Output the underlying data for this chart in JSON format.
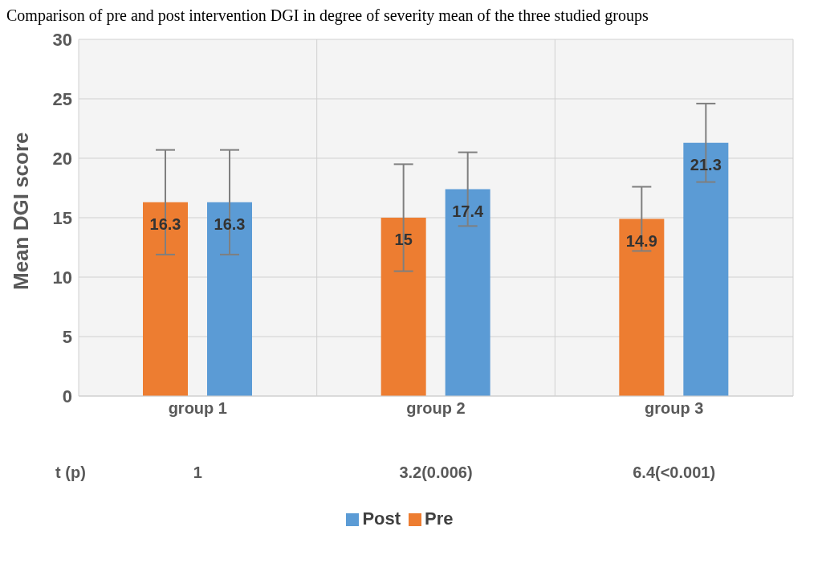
{
  "chart_data": {
    "type": "bar",
    "title": "Comparison of pre and post intervention DGI in degree of severity mean of the three studied groups",
    "ylabel": "Mean DGI  score",
    "categories": [
      "group 1",
      "group 2",
      "group 3"
    ],
    "series": [
      {
        "name": "Pre",
        "color": "#ed7d31",
        "values": [
          16.3,
          15,
          14.9
        ],
        "errors": [
          4.4,
          4.5,
          2.7
        ]
      },
      {
        "name": "Post",
        "color": "#5b9bd5",
        "values": [
          16.3,
          17.4,
          21.3
        ],
        "errors": [
          4.4,
          3.1,
          3.3
        ]
      }
    ],
    "ylim": [
      0,
      30
    ],
    "yticks": [
      0,
      5,
      10,
      15,
      20,
      25,
      30
    ],
    "grid": true,
    "legend": "bottom",
    "data_labels": true,
    "annotations": [
      "t (p)",
      "1",
      "3.2(0.006)",
      "6.4(<0.001)"
    ]
  }
}
